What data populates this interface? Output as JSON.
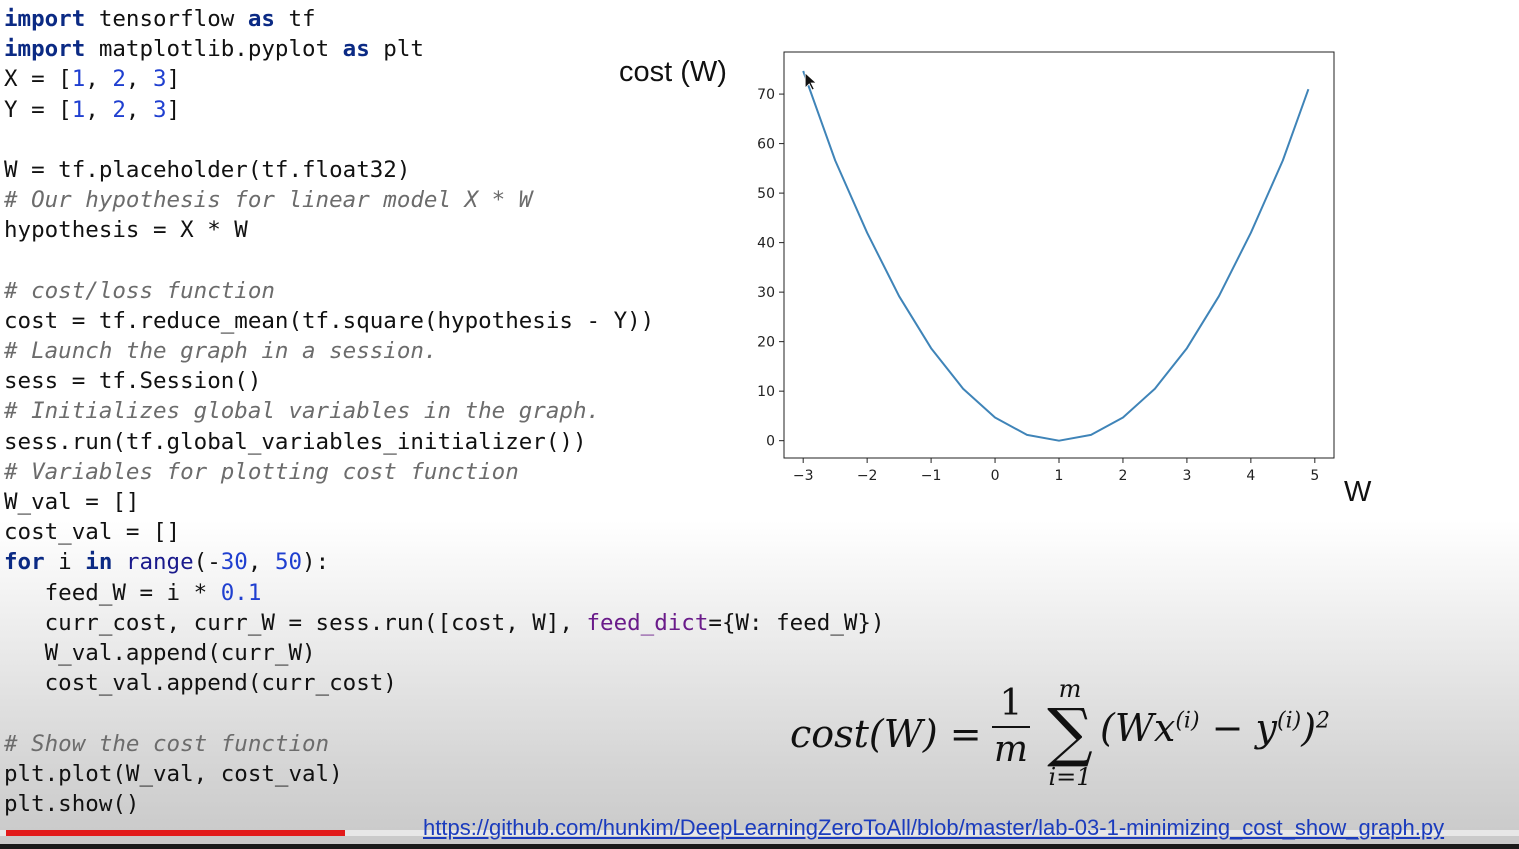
{
  "code_lines": [
    [
      {
        "t": "import",
        "c": "kw"
      },
      {
        "t": " tensorflow "
      },
      {
        "t": "as",
        "c": "kw"
      },
      {
        "t": " tf"
      }
    ],
    [
      {
        "t": "import",
        "c": "kw"
      },
      {
        "t": " matplotlib.pyplot "
      },
      {
        "t": "as",
        "c": "kw"
      },
      {
        "t": " plt"
      }
    ],
    [
      {
        "t": "X = ["
      },
      {
        "t": "1",
        "c": "num"
      },
      {
        "t": ", "
      },
      {
        "t": "2",
        "c": "num"
      },
      {
        "t": ", "
      },
      {
        "t": "3",
        "c": "num"
      },
      {
        "t": "]"
      }
    ],
    [
      {
        "t": "Y = ["
      },
      {
        "t": "1",
        "c": "num"
      },
      {
        "t": ", "
      },
      {
        "t": "2",
        "c": "num"
      },
      {
        "t": ", "
      },
      {
        "t": "3",
        "c": "num"
      },
      {
        "t": "]"
      }
    ],
    [],
    [
      {
        "t": "W = tf.placeholder(tf.float32)"
      }
    ],
    [
      {
        "t": "# Our hypothesis for linear model X * W",
        "c": "cm"
      }
    ],
    [
      {
        "t": "hypothesis = X * W"
      }
    ],
    [],
    [
      {
        "t": "# cost/loss function",
        "c": "cm"
      }
    ],
    [
      {
        "t": "cost = tf.reduce_mean(tf.square(hypothesis - Y))"
      }
    ],
    [
      {
        "t": "# Launch the graph in a session.",
        "c": "cm"
      }
    ],
    [
      {
        "t": "sess = tf.Session()"
      }
    ],
    [
      {
        "t": "# Initializes global variables in the graph.",
        "c": "cm"
      }
    ],
    [
      {
        "t": "sess.run(tf.global_variables_initializer())"
      }
    ],
    [
      {
        "t": "# Variables for plotting cost function",
        "c": "cm"
      }
    ],
    [
      {
        "t": "W_val = []"
      }
    ],
    [
      {
        "t": "cost_val = []"
      }
    ],
    [
      {
        "t": "for",
        "c": "kw"
      },
      {
        "t": " i "
      },
      {
        "t": "in",
        "c": "kw"
      },
      {
        "t": " "
      },
      {
        "t": "range",
        "c": "fn"
      },
      {
        "t": "(-"
      },
      {
        "t": "30",
        "c": "num"
      },
      {
        "t": ", "
      },
      {
        "t": "50",
        "c": "num"
      },
      {
        "t": "):"
      }
    ],
    [
      {
        "t": "   feed_W = i * "
      },
      {
        "t": "0.1",
        "c": "num"
      }
    ],
    [
      {
        "t": "   curr_cost, curr_W = sess.run([cost, W], "
      },
      {
        "t": "feed_dict",
        "c": "kwarg"
      },
      {
        "t": "={W: feed_W})"
      }
    ],
    [
      {
        "t": "   W_val.append(curr_W)"
      }
    ],
    [
      {
        "t": "   cost_val.append(curr_cost)"
      }
    ],
    [],
    [
      {
        "t": "# Show the cost function",
        "c": "cm"
      }
    ],
    [
      {
        "t": "plt.plot(W_val, cost_val)"
      }
    ],
    [
      {
        "t": "plt.show()"
      }
    ]
  ],
  "chart_data": {
    "type": "line",
    "title": "",
    "xlabel": "W",
    "ylabel": "cost (W)",
    "xlim": [
      -3.3,
      5.3
    ],
    "ylim": [
      -3.5,
      78.5
    ],
    "xticks": [
      -3,
      -2,
      -1,
      0,
      1,
      2,
      3,
      4,
      5
    ],
    "xtick_labels": [
      "−3",
      "−2",
      "−1",
      "0",
      "1",
      "2",
      "3",
      "4",
      "5"
    ],
    "yticks": [
      0,
      10,
      20,
      30,
      40,
      50,
      60,
      70
    ],
    "grid": false,
    "line_color": "#3f84b8",
    "series": [
      {
        "x": [
          -3.0,
          -2.5,
          -2.0,
          -1.5,
          -1.0,
          -0.5,
          0.0,
          0.5,
          1.0,
          1.5,
          2.0,
          2.5,
          3.0,
          3.5,
          4.0,
          4.5,
          4.9
        ],
        "y": [
          74.67,
          56.58,
          42.0,
          29.17,
          18.67,
          10.5,
          4.67,
          1.17,
          0.0,
          1.17,
          4.67,
          10.5,
          18.67,
          29.17,
          42.0,
          56.58,
          70.98
        ]
      }
    ]
  },
  "formula": {
    "lhs": "cost(W) =",
    "numerator": "1",
    "denominator": "m",
    "sum_upper": "m",
    "sum_symbol": "∑",
    "sum_lower": "i=1",
    "body_open": "(Wx",
    "sup1": "(i)",
    "body_mid": " − y",
    "sup2": "(i)",
    "body_close": ")",
    "sup3": "2"
  },
  "url": "https://github.com/hunkim/DeepLearningZeroToAll/blob/master/lab-03-1-minimizing_cost_show_graph.py",
  "video_progress": 0.227,
  "colors": {
    "progress": "#e21b1b",
    "link": "#1a3bbd",
    "keyword": "#0b2a84",
    "number": "#1f3fd0",
    "comment": "#6c6c6c"
  }
}
